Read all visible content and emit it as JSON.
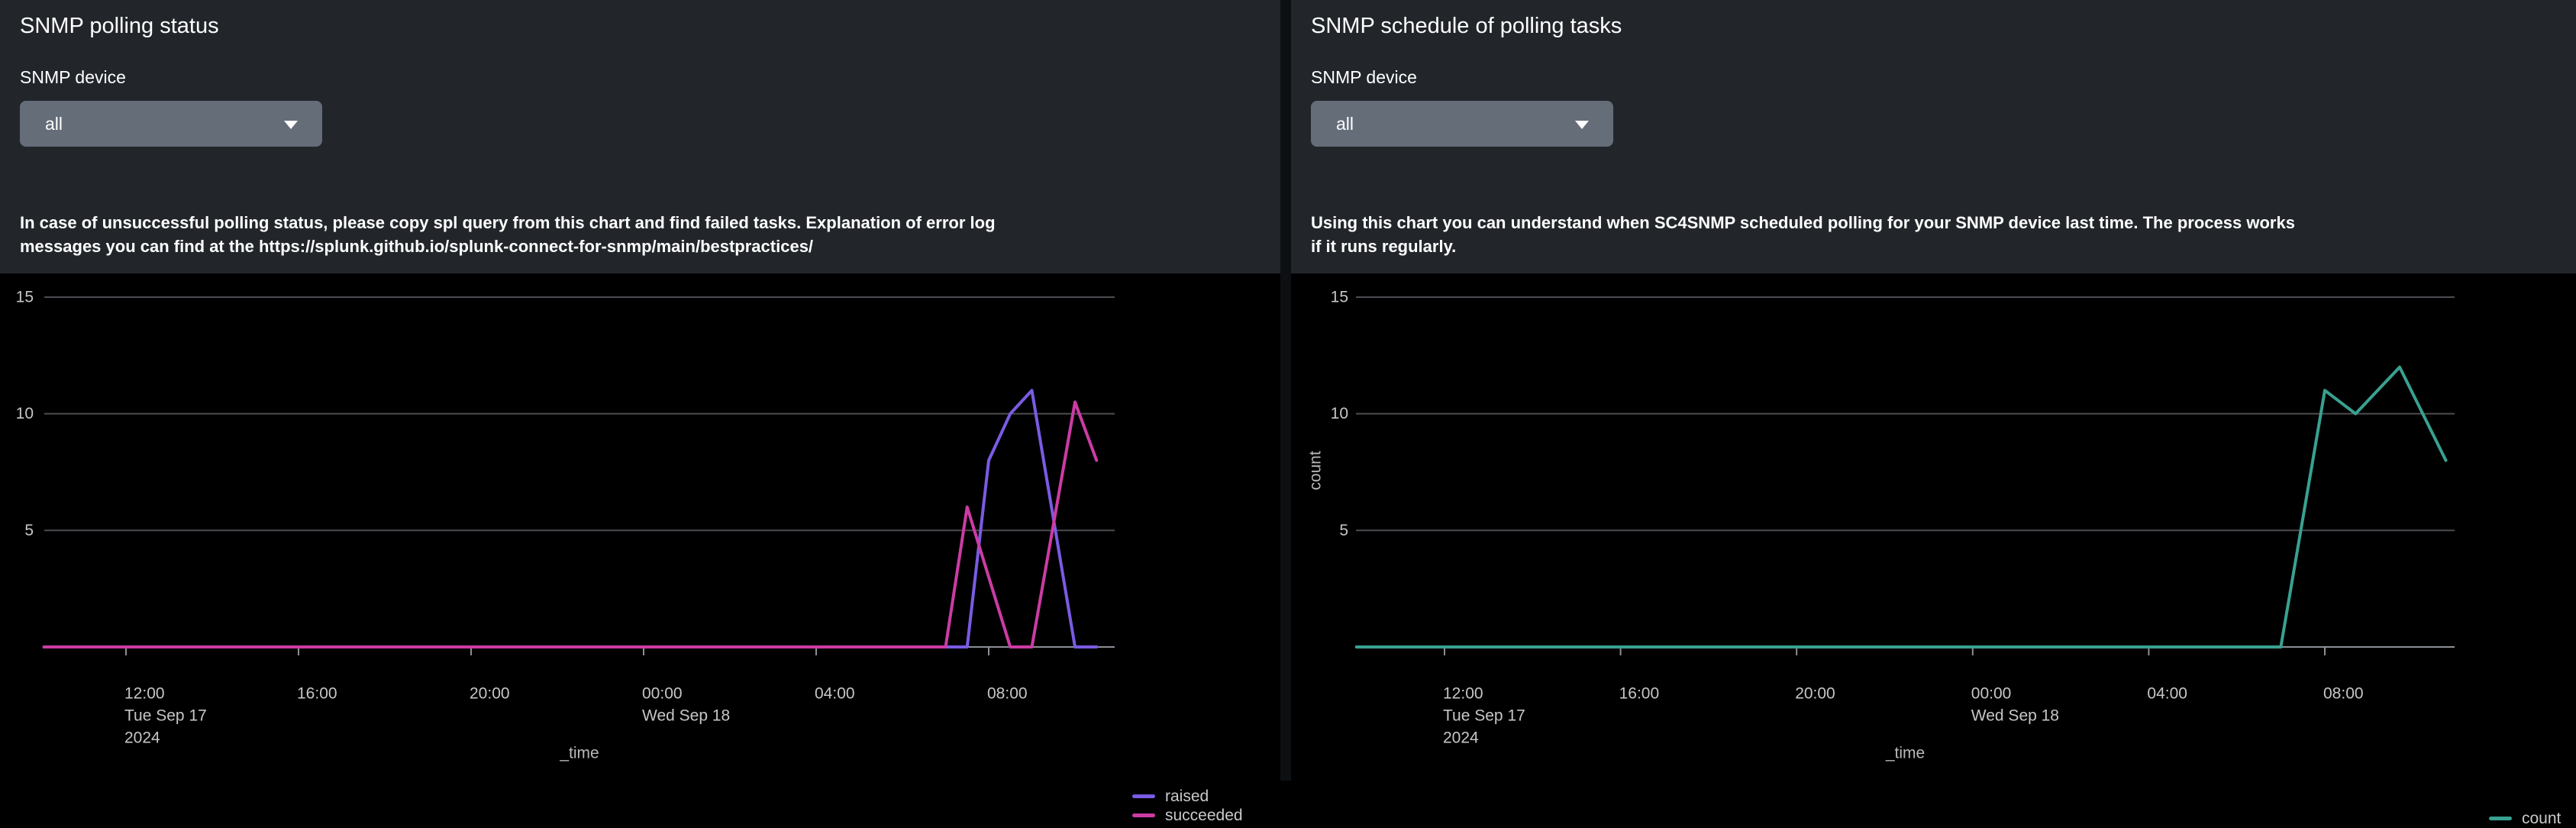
{
  "panels": [
    {
      "title": "SNMP polling status",
      "input_label": "SNMP device",
      "dropdown": {
        "value": "all"
      },
      "description_lines": [
        "In case of unsuccessful polling status, please copy spl query from this chart and find failed tasks. Explanation of error log",
        "messages you can find at the https://splunk.github.io/splunk-connect-for-snmp/main/bestpractices/"
      ],
      "chart_data": {
        "type": "line",
        "title": "",
        "xlabel": "_time",
        "ylabel": "",
        "ylim": [
          0,
          15
        ],
        "yticks": [
          5,
          10,
          15
        ],
        "x_start_label": "Tue Sep 17 2024 ~10:00",
        "x_end_label": "Wed Sep 18 2024 ~10:55",
        "grid": "horizontal",
        "legend_position": "right",
        "xticks": [
          {
            "h": 0,
            "lines": [
              "12:00",
              "Tue Sep 17",
              "2024"
            ]
          },
          {
            "h": 4,
            "lines": [
              "16:00"
            ]
          },
          {
            "h": 8,
            "lines": [
              "20:00"
            ]
          },
          {
            "h": 12,
            "lines": [
              "00:00",
              "Wed Sep 18"
            ]
          },
          {
            "h": 16,
            "lines": [
              "04:00"
            ]
          },
          {
            "h": 20,
            "lines": [
              "08:00"
            ]
          }
        ],
        "series": [
          {
            "name": "raised",
            "color": "#7A5BE4",
            "points_h_v": [
              [
                -1.9,
                0
              ],
              [
                19.5,
                0
              ],
              [
                20,
                8
              ],
              [
                20.5,
                10
              ],
              [
                21,
                11
              ],
              [
                22,
                0
              ],
              [
                22.5,
                0
              ]
            ]
          },
          {
            "name": "succeeded",
            "color": "#CC3CA4",
            "points_h_v": [
              [
                -1.9,
                0
              ],
              [
                19,
                0
              ],
              [
                19.5,
                6
              ],
              [
                20.5,
                0
              ],
              [
                21,
                0
              ],
              [
                22,
                10.5
              ],
              [
                22.5,
                8
              ]
            ]
          }
        ],
        "note": "h = hours after 12:00 Tue Sep 17 2024; series flat at 0 across most of the window with spikes between ~07:00 and ~10:30 on Wed Sep 18"
      }
    },
    {
      "title": "SNMP schedule of polling tasks",
      "input_label": "SNMP device",
      "dropdown": {
        "value": "all"
      },
      "description_lines": [
        "Using this chart you can understand when SC4SNMP scheduled polling for your SNMP device last time. The process works",
        "if it runs regularly."
      ],
      "chart_data": {
        "type": "line",
        "title": "",
        "xlabel": "_time",
        "ylabel": "count",
        "ylim": [
          0,
          15
        ],
        "yticks": [
          5,
          10,
          15
        ],
        "x_start_label": "Tue Sep 17 2024 ~10:00",
        "x_end_label": "Wed Sep 18 2024 ~10:55",
        "grid": "horizontal",
        "legend_position": "right",
        "xticks": [
          {
            "h": 0,
            "lines": [
              "12:00",
              "Tue Sep 17",
              "2024"
            ]
          },
          {
            "h": 4,
            "lines": [
              "16:00"
            ]
          },
          {
            "h": 8,
            "lines": [
              "20:00"
            ]
          },
          {
            "h": 12,
            "lines": [
              "00:00",
              "Wed Sep 18"
            ]
          },
          {
            "h": 16,
            "lines": [
              "04:00"
            ]
          },
          {
            "h": 20,
            "lines": [
              "08:00"
            ]
          }
        ],
        "series": [
          {
            "name": "count",
            "color": "#39A191",
            "points_h_v": [
              [
                -2,
                0
              ],
              [
                19,
                0
              ],
              [
                20,
                11
              ],
              [
                20.7,
                10
              ],
              [
                21.7,
                12
              ],
              [
                22.75,
                8
              ]
            ]
          }
        ],
        "note": "h = hours after 12:00 Tue Sep 17 2024; count flat at 0 until ~07:00 Wed Sep 18, peaks 11 at 08:00, dips to 10, peaks 12 at ~09:40, ends 8 at ~10:45"
      }
    }
  ]
}
